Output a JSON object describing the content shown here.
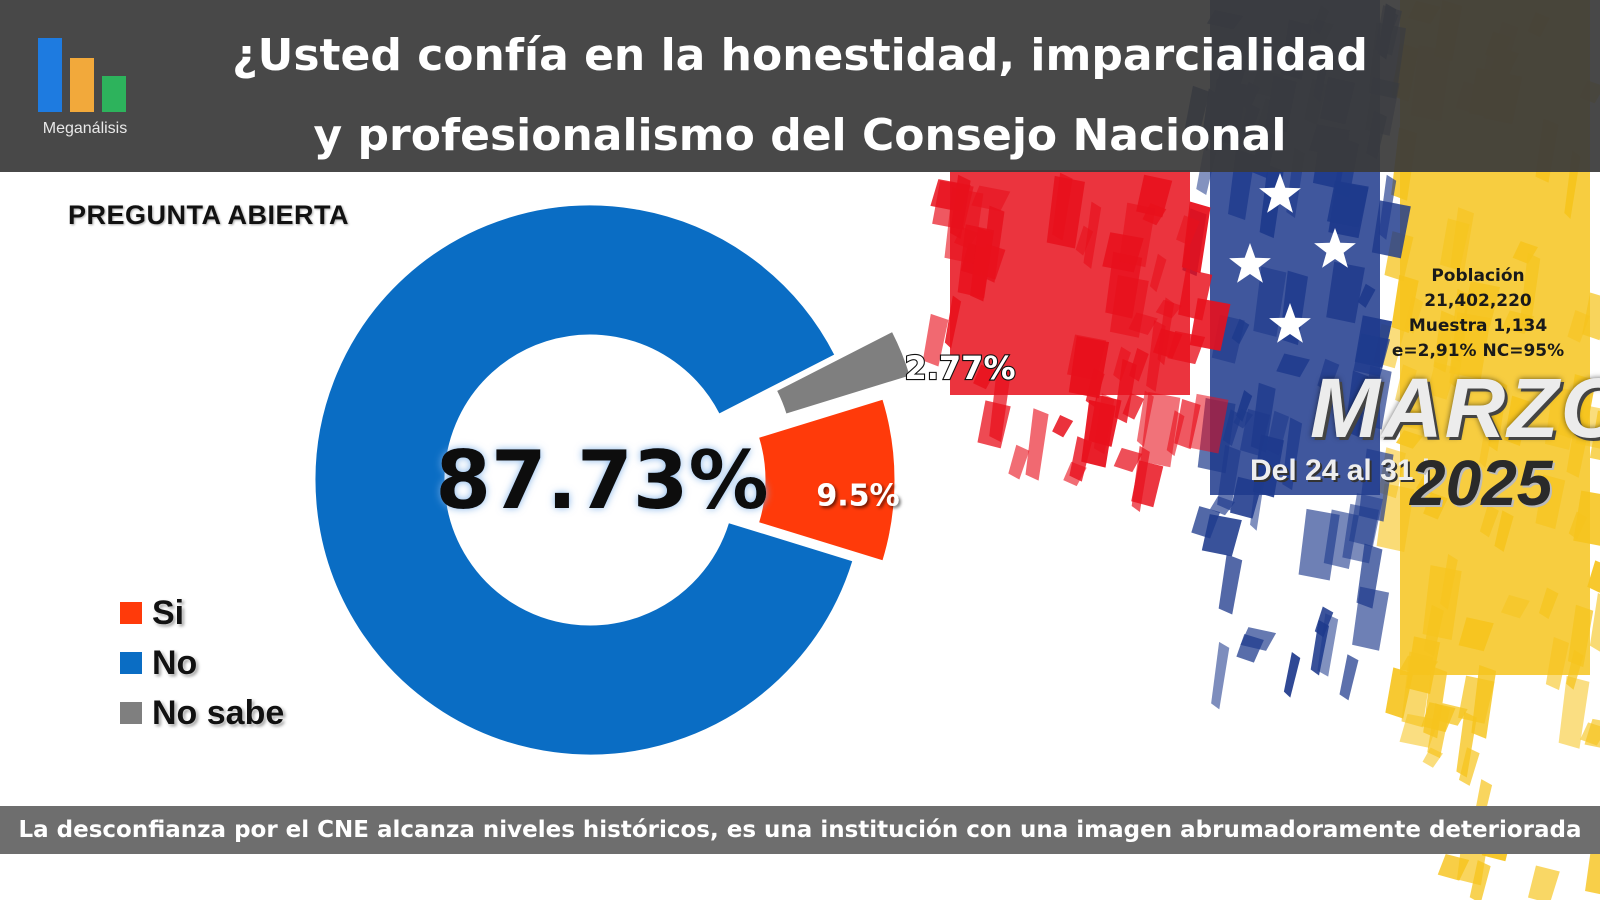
{
  "header": {
    "title_line1": "¿Usted confía en la honestidad, imparcialidad",
    "title_line2": "y profesionalismo del Consejo Nacional Electoral?",
    "logo_text": "Meganálisis",
    "logo_colors": [
      "#1e7be0",
      "#f2a93b",
      "#2db35c"
    ]
  },
  "open_question_label": "PREGUNTA ABIERTA",
  "chart_data": {
    "type": "pie",
    "style": "donut",
    "categories": [
      "Si",
      "No",
      "No sabe"
    ],
    "values": [
      9.5,
      87.73,
      2.77
    ],
    "labels": [
      "9.5%",
      "87.73%",
      "2.77%"
    ],
    "colors": [
      "#ff3a0a",
      "#0a6dc4",
      "#7f7f7f"
    ],
    "legend_position": "bottom-left"
  },
  "stats": {
    "population_label": "Población",
    "population_value": "21,402,220",
    "sample": "Muestra 1,134",
    "error_confidence": "e=2,91%  NC=95%"
  },
  "date": {
    "month": "MARZO",
    "range": "Del 24 al 31 |",
    "year": "2025"
  },
  "footer_text": "La desconfianza por el CNE alcanza niveles históricos, es una institución con una imagen abrumadoramente deteriorada",
  "flag_colors": [
    "#e8101c",
    "#1e3a8c",
    "#f6c41e"
  ]
}
